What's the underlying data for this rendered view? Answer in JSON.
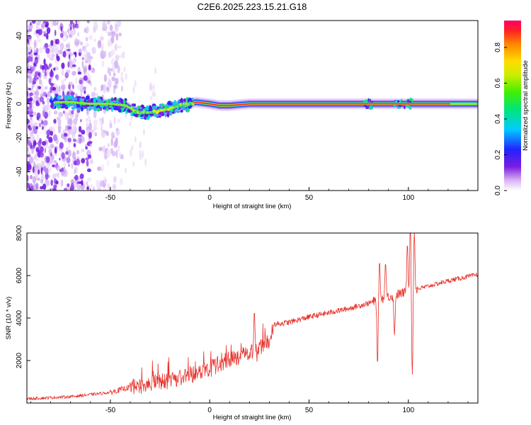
{
  "title": "C2E6.2025.223.15.21.G18",
  "chart_data": [
    {
      "type": "heatmap",
      "xlabel": "Height of straight line (km)",
      "ylabel": "Frequency (Hz)",
      "xlim": [
        -92,
        135
      ],
      "ylim": [
        -51,
        49
      ],
      "xticks": [
        -50,
        0,
        50,
        100
      ],
      "yticks": [
        -40,
        -20,
        0,
        20,
        40
      ],
      "colorbar": {
        "label": "Normalized spectral amplitude",
        "range": [
          0,
          0.95
        ],
        "ticks": [
          0.0,
          0.2,
          0.4,
          0.6,
          0.8
        ],
        "tick_labels": [
          "0.0",
          "0.2",
          "0.4",
          "0.6",
          "0.8"
        ]
      },
      "ridge": {
        "x": [
          -78,
          -70,
          -60,
          -50,
          -42,
          -38,
          -35,
          -30,
          -25,
          -20,
          -15,
          -10,
          -7,
          0,
          5,
          10,
          20,
          50,
          80,
          95,
          100,
          110,
          135
        ],
        "y": [
          1,
          1,
          0,
          0,
          -1,
          -4,
          -5,
          -5,
          -4,
          -3,
          -1,
          0,
          1,
          0,
          -1,
          -1,
          0,
          0,
          0,
          0,
          0,
          0,
          0
        ]
      }
    },
    {
      "type": "line",
      "xlabel": "Height of straight line (km)",
      "ylabel": "SNR (10 * v/v)",
      "xlim": [
        -92,
        135
      ],
      "ylim": [
        0,
        8000
      ],
      "xticks": [
        -50,
        0,
        50,
        100
      ],
      "yticks": [
        2000,
        4000,
        6000,
        8000
      ],
      "color": "#e8302a",
      "trend": {
        "x": [
          -92,
          -70,
          -50,
          -40,
          -30,
          -20,
          -10,
          0,
          10,
          20,
          25,
          30,
          31,
          32,
          40,
          50,
          60,
          70,
          80,
          85,
          90,
          100,
          110,
          120,
          135
        ],
        "y": [
          200,
          300,
          500,
          750,
          900,
          1100,
          1300,
          1700,
          2000,
          2400,
          2650,
          2900,
          3300,
          3700,
          3800,
          4050,
          4250,
          4450,
          4700,
          4850,
          5000,
          5250,
          5500,
          5750,
          6050
        ]
      },
      "spikes": [
        {
          "x": 22.5,
          "y": 4300
        },
        {
          "x": 30.5,
          "y": 3000
        },
        {
          "x": 84.5,
          "y": 1800
        },
        {
          "x": 85.5,
          "y": 6650
        },
        {
          "x": 88.5,
          "y": 6600
        },
        {
          "x": 93,
          "y": 3200
        },
        {
          "x": 99.5,
          "y": 7500
        },
        {
          "x": 101,
          "y": 8400
        },
        {
          "x": 102,
          "y": 1300
        },
        {
          "x": 103,
          "y": 8000
        }
      ]
    }
  ]
}
